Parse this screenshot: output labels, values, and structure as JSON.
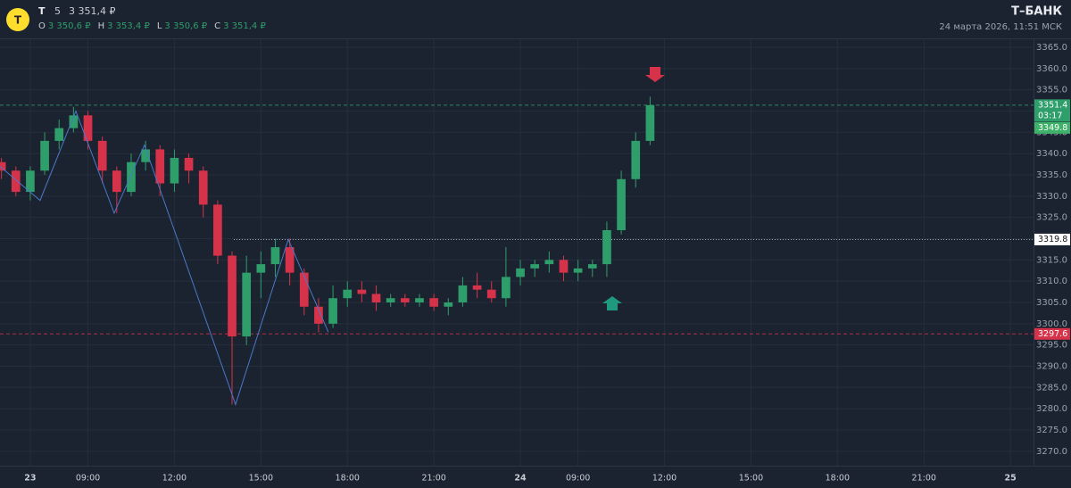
{
  "header": {
    "logo": "T",
    "symbol": "T",
    "interval": "5",
    "price": "3 351,4 ₽",
    "ohlc": [
      {
        "label": "O",
        "value": "3 350,6 ₽"
      },
      {
        "label": "H",
        "value": "3 353,4 ₽"
      },
      {
        "label": "L",
        "value": "3 350,6 ₽"
      },
      {
        "label": "C",
        "value": "3 351,4 ₽"
      }
    ],
    "brand": "Т–БАНК",
    "datetime": "24 марта 2026, 11:51 МСК"
  },
  "chart_data": {
    "type": "candlestick",
    "up_color": "#2e9e6b",
    "down_color": "#d6334a",
    "x": [
      -1.0,
      -0.5,
      0.0,
      0.5,
      1.0,
      1.5,
      2.0,
      2.5,
      3.0,
      3.5,
      4.0,
      4.5,
      5.0,
      5.5,
      6.0,
      6.5,
      7.0,
      7.5,
      8.0,
      8.5,
      9.0,
      9.5,
      10.0,
      10.5,
      11.0,
      11.5,
      12.0,
      12.5,
      13.0,
      13.5,
      14.0,
      14.5,
      15.0,
      15.5,
      16.0,
      16.5,
      17.0,
      17.5,
      18.0,
      18.5,
      19.0,
      19.5,
      20.0,
      20.5,
      21.0,
      21.5
    ],
    "open": [
      3338,
      3336,
      3331,
      3336,
      3343,
      3346,
      3349,
      3343,
      3336,
      3331,
      3338,
      3341,
      3333,
      3339,
      3336,
      3328,
      3316,
      3297,
      3312,
      3314,
      3318,
      3312,
      3304,
      3300,
      3306,
      3308,
      3307,
      3305,
      3306,
      3305,
      3306,
      3304,
      3305,
      3309,
      3308,
      3306,
      3311,
      3313,
      3314,
      3315,
      3312,
      3313,
      3314,
      3322,
      3334,
      3343
    ],
    "high": [
      3339,
      3337,
      3337,
      3345,
      3348,
      3351,
      3350,
      3344,
      3337,
      3340,
      3343,
      3342,
      3341,
      3340,
      3337,
      3329,
      3317,
      3316,
      3317,
      3320,
      3320,
      3313,
      3306,
      3309,
      3310,
      3310,
      3309,
      3307,
      3307,
      3307,
      3307,
      3306,
      3311,
      3312,
      3310,
      3318,
      3315,
      3315,
      3317,
      3316,
      3315,
      3315,
      3324,
      3336,
      3345,
      3353.4
    ],
    "low": [
      3334,
      3330,
      3329,
      3335,
      3341,
      3345,
      3341,
      3333,
      3326,
      3330,
      3336,
      3330,
      3331,
      3333,
      3325,
      3314,
      3281,
      3295,
      3306,
      3311,
      3309,
      3302,
      3298,
      3299,
      3304,
      3305,
      3303,
      3304,
      3304,
      3304,
      3303,
      3302,
      3304,
      3306,
      3305,
      3304,
      3309,
      3311,
      3312,
      3310,
      3310,
      3311,
      3311,
      3321,
      3332,
      3342
    ],
    "close": [
      3336,
      3331,
      3336,
      3343,
      3346,
      3349,
      3343,
      3336,
      3331,
      3338,
      3341,
      3333,
      3339,
      3336,
      3328,
      3316,
      3297,
      3312,
      3314,
      3318,
      3312,
      3304,
      3300,
      3306,
      3308,
      3307,
      3305,
      3306,
      3305,
      3306,
      3304,
      3305,
      3309,
      3308,
      3306,
      3311,
      3313,
      3314,
      3315,
      3312,
      3313,
      3314,
      3322,
      3334,
      3343,
      3351.4
    ],
    "zigzag": {
      "color": "#4a78c9",
      "x": [
        -1.05,
        0.34,
        1.58,
        2.91,
        3.96,
        7.12,
        8.95,
        10.34
      ],
      "y": [
        3337,
        3329,
        3350,
        3326,
        3342,
        3281,
        3319.8,
        3298
      ]
    },
    "levels": [
      {
        "value": 3351.4,
        "color": "#2e9e6b",
        "x_start": -1.05
      },
      {
        "value": 3319.8,
        "color": "#c8ccd4",
        "x_start": 7.06
      },
      {
        "value": 3297.6,
        "color": "#d6334a",
        "x_start": -1.05
      }
    ],
    "timer": "03:17",
    "bid": 3349.8,
    "xlim": [
      -1.05,
      34.8
    ],
    "ylim": [
      3266.6,
      3366.9
    ],
    "xticks": [
      {
        "value": 0,
        "label": "23"
      },
      {
        "value": 2,
        "label": "09:00"
      },
      {
        "value": 5,
        "label": "12:00"
      },
      {
        "value": 8,
        "label": "15:00"
      },
      {
        "value": 11,
        "label": "18:00"
      },
      {
        "value": 14,
        "label": "21:00"
      },
      {
        "value": 17,
        "label": "24"
      },
      {
        "value": 19,
        "label": "09:00"
      },
      {
        "value": 22,
        "label": "12:00"
      },
      {
        "value": 25,
        "label": "15:00"
      },
      {
        "value": 28,
        "label": "18:00"
      },
      {
        "value": 31,
        "label": "21:00"
      },
      {
        "value": 34,
        "label": "25"
      }
    ],
    "yticks": [
      {
        "value": 3270,
        "label": "3270.0"
      },
      {
        "value": 3275,
        "label": "3275.0"
      },
      {
        "value": 3280,
        "label": "3280.0"
      },
      {
        "value": 3285,
        "label": "3285.0"
      },
      {
        "value": 3290,
        "label": "3290.0"
      },
      {
        "value": 3295,
        "label": "3295.0"
      },
      {
        "value": 3300,
        "label": "3300.0"
      },
      {
        "value": 3305,
        "label": "3305.0"
      },
      {
        "value": 3310,
        "label": "3310.0"
      },
      {
        "value": 3315,
        "label": "3315.0"
      },
      {
        "value": 3320,
        "label": "3320.0"
      },
      {
        "value": 3325,
        "label": "3325.0"
      },
      {
        "value": 3330,
        "label": "3330.0"
      },
      {
        "value": 3335,
        "label": "3335.0"
      },
      {
        "value": 3340,
        "label": "3340.0"
      },
      {
        "value": 3345,
        "label": "3345.0"
      },
      {
        "value": 3350,
        "label": "3350.0"
      },
      {
        "value": 3355,
        "label": "3355.0"
      },
      {
        "value": 3360,
        "label": "3360.0"
      },
      {
        "value": 3365,
        "label": "3365.0"
      }
    ],
    "grid": true
  }
}
